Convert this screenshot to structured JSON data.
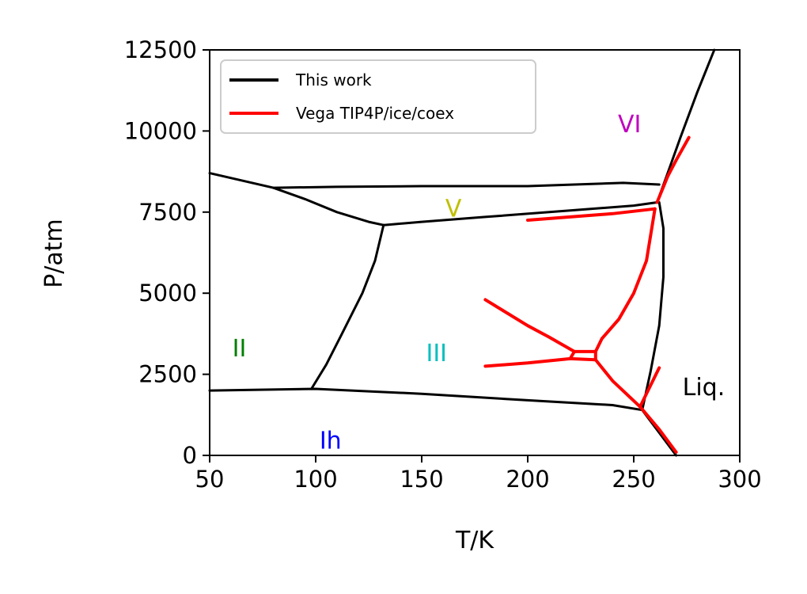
{
  "chart_data": {
    "type": "line",
    "title": "",
    "xlabel": "T/K",
    "ylabel": "P/atm",
    "xlim": [
      50,
      300
    ],
    "ylim": [
      0,
      12500
    ],
    "xticks": [
      "50",
      "100",
      "150",
      "200",
      "250",
      "300"
    ],
    "yticks": [
      "0",
      "2500",
      "5000",
      "7500",
      "10000",
      "12500"
    ],
    "grid": false,
    "legend_position": "top-left",
    "series": [
      {
        "name": "This work",
        "color": "#000000",
        "segments": [
          {
            "x": [
              50,
              80,
              95,
              110,
              125,
              132
            ],
            "y": [
              8700,
              8250,
              7900,
              7500,
              7200,
              7100
            ]
          },
          {
            "x": [
              80,
              110,
              150,
              200,
              245,
              262
            ],
            "y": [
              8250,
              8280,
              8300,
              8300,
              8400,
              8350
            ]
          },
          {
            "x": [
              132,
              150,
              180,
              220,
              250,
              261
            ],
            "y": [
              7100,
              7200,
              7350,
              7550,
              7700,
              7800
            ]
          },
          {
            "x": [
              132,
              128,
              122,
              112,
              105,
              98
            ],
            "y": [
              7100,
              6000,
              5000,
              3700,
              2800,
              2050
            ]
          },
          {
            "x": [
              50,
              100,
              150,
              200,
              240,
              254
            ],
            "y": [
              2000,
              2050,
              1900,
              1700,
              1550,
              1400
            ]
          },
          {
            "x": [
              254,
              258,
              262,
              264,
              264,
              262
            ],
            "y": [
              1400,
              2600,
              4000,
              5500,
              7000,
              7800
            ]
          },
          {
            "x": [
              261,
              266,
              272,
              280,
              288
            ],
            "y": [
              7800,
              8700,
              9800,
              11200,
              12500
            ]
          },
          {
            "x": [
              254,
              262,
              270
            ],
            "y": [
              1400,
              700,
              0
            ]
          }
        ]
      },
      {
        "name": "Vega TIP4P/ice/coex",
        "color": "#ff0000",
        "segments": [
          {
            "x": [
              200,
              220,
              240,
              260
            ],
            "y": [
              7250,
              7350,
              7450,
              7600
            ]
          },
          {
            "x": [
              261,
              266,
              270,
              276
            ],
            "y": [
              7800,
              8600,
              9100,
              9800
            ]
          },
          {
            "x": [
              260,
              256,
              250,
              243,
              235,
              232
            ],
            "y": [
              7600,
              6000,
              5000,
              4200,
              3600,
              3200
            ]
          },
          {
            "x": [
              180,
              200,
              210,
              222
            ],
            "y": [
              4800,
              4000,
              3650,
              3200
            ]
          },
          {
            "x": [
              180,
              200,
              220
            ],
            "y": [
              2750,
              2850,
              2980
            ]
          },
          {
            "x": [
              222,
              232
            ],
            "y": [
              3200,
              3200
            ]
          },
          {
            "x": [
              220,
              232
            ],
            "y": [
              2980,
              2950
            ]
          },
          {
            "x": [
              222,
              220
            ],
            "y": [
              3200,
              2980
            ]
          },
          {
            "x": [
              232,
              232
            ],
            "y": [
              3200,
              2950
            ]
          },
          {
            "x": [
              232,
              240,
              253
            ],
            "y": [
              2950,
              2300,
              1500
            ]
          },
          {
            "x": [
              253,
              262
            ],
            "y": [
              1500,
              2700
            ]
          },
          {
            "x": [
              253,
              262,
              270
            ],
            "y": [
              1500,
              800,
              100
            ]
          }
        ]
      }
    ],
    "annotations": [
      {
        "text": "VI",
        "x": 248,
        "y": 10200,
        "color": "#bf00bf"
      },
      {
        "text": "V",
        "x": 165,
        "y": 7600,
        "color": "#bfbf00"
      },
      {
        "text": "II",
        "x": 64,
        "y": 3300,
        "color": "#008000"
      },
      {
        "text": "III",
        "x": 157,
        "y": 3150,
        "color": "#00bfbf"
      },
      {
        "text": "Liq.",
        "x": 283,
        "y": 2100,
        "color": "#000000"
      },
      {
        "text": "Ih",
        "x": 107,
        "y": 450,
        "color": "#0000ff"
      }
    ]
  }
}
